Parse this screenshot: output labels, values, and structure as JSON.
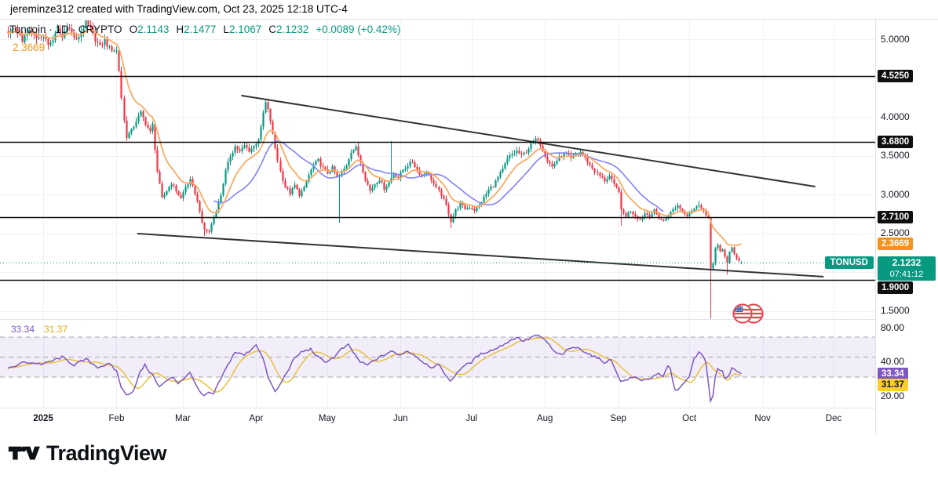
{
  "topbar": {
    "text": "jereminze312 created with TradingView.com, Oct 23, 2025 12:18 UTC-4"
  },
  "legend": {
    "symbol_line": "Toncoin · 1D · CRYPTO",
    "ohlc": [
      {
        "label": "O",
        "value": "2.1143"
      },
      {
        "label": "H",
        "value": "2.1477"
      },
      {
        "label": "L",
        "value": "2.1067"
      },
      {
        "label": "C",
        "value": "2.1232"
      }
    ],
    "change": "+0.0089 (+0.42%)",
    "ma_value": "2.3669"
  },
  "price_axis": {
    "ticks": [
      {
        "text": "5.0000",
        "price": 5.0
      },
      {
        "text": "4.0000",
        "price": 4.0
      },
      {
        "text": "3.5000",
        "price": 3.5
      },
      {
        "text": "3.0000",
        "price": 3.0
      },
      {
        "text": "2.5000",
        "price": 2.5
      },
      {
        "text": "1.5000",
        "price": 1.5
      }
    ],
    "level_labels": [
      {
        "text": "4.5250",
        "price": 4.525
      },
      {
        "text": "3.6800",
        "price": 3.68
      },
      {
        "text": "2.7100",
        "price": 2.71
      },
      {
        "text": "1.9000",
        "price": 1.9
      }
    ],
    "ma_label": {
      "text": "2.3669",
      "price": 2.3669
    },
    "last": {
      "symbol": "TONUSD",
      "price_text": "2.1232",
      "countdown": "07:41:12",
      "price": 2.1232
    }
  },
  "rsi_axis": {
    "ticks": [
      {
        "text": "80.00",
        "v": 80
      },
      {
        "text": "40.00",
        "v": 40
      },
      {
        "text": "20.00",
        "v": 20
      }
    ],
    "rsi_label": {
      "text": "33.34",
      "v": 33.34
    },
    "ma_label": {
      "text": "31.37",
      "v": 31.37
    }
  },
  "rsi_readout": {
    "rsi": "33.34",
    "ma": "31.37"
  },
  "footer": {
    "brand": "TradingView"
  },
  "colors": {
    "up": "#089981",
    "down": "#F23645",
    "ma_fast": "#F8AB63",
    "ma_slow": "#8183F6",
    "rsi": "#7E57C2",
    "rsi_ma": "#E9C13D",
    "accent_teal": "#089981",
    "label_black_bg": "#0F0F0F",
    "label_orange_bg": "#F7931A",
    "grid": "#EFF1F4",
    "band_fill": "rgba(126,87,194,0.10)",
    "dashed": "#9598A1",
    "trendline": "#1F2328",
    "level_line": "#0B0B0B",
    "separator": "#E0E3EB",
    "text": "#131722"
  },
  "chart_data": {
    "type": "candlestick",
    "symbol": "TONUSD",
    "title": "Toncoin · 1D · CRYPTO",
    "interval": "1D",
    "price_axis_range": [
      1.36,
      5.25
    ],
    "last_candle": {
      "o": 2.1143,
      "h": 2.1477,
      "l": 2.1067,
      "c": 2.1232,
      "change": "+0.0089 (+0.42%)"
    },
    "current_price": 2.1232,
    "horizontal_levels": [
      4.525,
      3.68,
      2.71,
      1.9
    ],
    "ma_fast_last_value": 2.3669,
    "month_ticks": [
      {
        "label": "2025",
        "day": 0,
        "bold": true
      },
      {
        "label": "Feb",
        "day": 31
      },
      {
        "label": "Mar",
        "day": 59
      },
      {
        "label": "Apr",
        "day": 90
      },
      {
        "label": "May",
        "day": 120
      },
      {
        "label": "Jun",
        "day": 151
      },
      {
        "label": "Jul",
        "day": 181
      },
      {
        "label": "Aug",
        "day": 212
      },
      {
        "label": "Sep",
        "day": 243
      },
      {
        "label": "Oct",
        "day": 273
      },
      {
        "label": "Nov",
        "day": 304
      },
      {
        "label": "Dec",
        "day": 334
      }
    ],
    "price_path": [
      [
        -15,
        5.08
      ],
      [
        -12,
        5.15
      ],
      [
        -9,
        4.98
      ],
      [
        -6,
        5.1
      ],
      [
        -3,
        5.0
      ],
      [
        0,
        5.05
      ],
      [
        2,
        4.92
      ],
      [
        4,
        5.0
      ],
      [
        6,
        5.12
      ],
      [
        8,
        5.02
      ],
      [
        10,
        5.18
      ],
      [
        12,
        5.08
      ],
      [
        14,
        4.98
      ],
      [
        16,
        5.1
      ],
      [
        18,
        5.22
      ],
      [
        20,
        5.12
      ],
      [
        22,
        5.0
      ],
      [
        24,
        4.9
      ],
      [
        26,
        4.98
      ],
      [
        28,
        4.88
      ],
      [
        31,
        4.85
      ],
      [
        32,
        4.6
      ],
      [
        33,
        4.25
      ],
      [
        34,
        3.95
      ],
      [
        35,
        3.75
      ],
      [
        37,
        3.82
      ],
      [
        39,
        3.95
      ],
      [
        41,
        4.05
      ],
      [
        43,
        3.92
      ],
      [
        45,
        3.8
      ],
      [
        46,
        3.9
      ],
      [
        48,
        3.3
      ],
      [
        50,
        2.95
      ],
      [
        52,
        3.05
      ],
      [
        54,
        3.15
      ],
      [
        56,
        3.05
      ],
      [
        58,
        2.95
      ],
      [
        60,
        3.1
      ],
      [
        62,
        3.18
      ],
      [
        64,
        3.02
      ],
      [
        66,
        2.8
      ],
      [
        67,
        2.62
      ],
      [
        68,
        2.55
      ],
      [
        70,
        2.52
      ],
      [
        71,
        2.62
      ],
      [
        73,
        2.8
      ],
      [
        75,
        3.0
      ],
      [
        77,
        3.3
      ],
      [
        79,
        3.5
      ],
      [
        81,
        3.62
      ],
      [
        83,
        3.55
      ],
      [
        85,
        3.63
      ],
      [
        87,
        3.57
      ],
      [
        89,
        3.62
      ],
      [
        91,
        3.72
      ],
      [
        92,
        3.85
      ],
      [
        93,
        4.05
      ],
      [
        94,
        4.18
      ],
      [
        95,
        4.08
      ],
      [
        96,
        3.95
      ],
      [
        98,
        3.6
      ],
      [
        100,
        3.3
      ],
      [
        102,
        3.1
      ],
      [
        104,
        3.02
      ],
      [
        106,
        3.12
      ],
      [
        108,
        3.0
      ],
      [
        110,
        3.08
      ],
      [
        112,
        3.25
      ],
      [
        114,
        3.38
      ],
      [
        116,
        3.44
      ],
      [
        118,
        3.34
      ],
      [
        120,
        3.28
      ],
      [
        122,
        3.34
      ],
      [
        124,
        3.22
      ],
      [
        126,
        3.28
      ],
      [
        128,
        3.38
      ],
      [
        130,
        3.56
      ],
      [
        132,
        3.6
      ],
      [
        134,
        3.42
      ],
      [
        136,
        3.2
      ],
      [
        138,
        3.05
      ],
      [
        140,
        3.14
      ],
      [
        142,
        3.2
      ],
      [
        144,
        3.08
      ],
      [
        146,
        3.16
      ],
      [
        148,
        3.27
      ],
      [
        150,
        3.22
      ],
      [
        152,
        3.32
      ],
      [
        154,
        3.38
      ],
      [
        156,
        3.42
      ],
      [
        158,
        3.32
      ],
      [
        160,
        3.24
      ],
      [
        162,
        3.3
      ],
      [
        164,
        3.2
      ],
      [
        166,
        3.08
      ],
      [
        168,
        3.0
      ],
      [
        170,
        2.86
      ],
      [
        172,
        2.66
      ],
      [
        174,
        2.8
      ],
      [
        176,
        2.88
      ],
      [
        178,
        2.82
      ],
      [
        180,
        2.84
      ],
      [
        182,
        2.8
      ],
      [
        184,
        2.86
      ],
      [
        186,
        2.96
      ],
      [
        188,
        3.06
      ],
      [
        190,
        3.12
      ],
      [
        192,
        3.22
      ],
      [
        194,
        3.32
      ],
      [
        196,
        3.46
      ],
      [
        198,
        3.52
      ],
      [
        200,
        3.56
      ],
      [
        202,
        3.5
      ],
      [
        204,
        3.56
      ],
      [
        206,
        3.64
      ],
      [
        208,
        3.7
      ],
      [
        209,
        3.72
      ],
      [
        211,
        3.58
      ],
      [
        213,
        3.44
      ],
      [
        215,
        3.36
      ],
      [
        217,
        3.44
      ],
      [
        219,
        3.5
      ],
      [
        221,
        3.52
      ],
      [
        223,
        3.46
      ],
      [
        225,
        3.52
      ],
      [
        227,
        3.55
      ],
      [
        229,
        3.47
      ],
      [
        231,
        3.38
      ],
      [
        233,
        3.3
      ],
      [
        235,
        3.24
      ],
      [
        237,
        3.18
      ],
      [
        239,
        3.24
      ],
      [
        241,
        3.12
      ],
      [
        243,
        3.05
      ],
      [
        244,
        2.79
      ],
      [
        246,
        2.73
      ],
      [
        248,
        2.79
      ],
      [
        250,
        2.73
      ],
      [
        252,
        2.68
      ],
      [
        254,
        2.76
      ],
      [
        256,
        2.73
      ],
      [
        258,
        2.79
      ],
      [
        260,
        2.7
      ],
      [
        262,
        2.66
      ],
      [
        264,
        2.73
      ],
      [
        266,
        2.81
      ],
      [
        268,
        2.86
      ],
      [
        270,
        2.79
      ],
      [
        272,
        2.74
      ],
      [
        274,
        2.8
      ],
      [
        276,
        2.84
      ],
      [
        277,
        2.88
      ],
      [
        278,
        2.84
      ],
      [
        279,
        2.79
      ],
      [
        280,
        2.73
      ],
      [
        281,
        2.69
      ],
      [
        282,
        2.05
      ],
      [
        283,
        2.13
      ],
      [
        284,
        2.31
      ],
      [
        285,
        2.34
      ],
      [
        286,
        2.26
      ],
      [
        287,
        2.29
      ],
      [
        288,
        2.21
      ],
      [
        289,
        2.13
      ],
      [
        290,
        2.26
      ],
      [
        291,
        2.31
      ],
      [
        292,
        2.23
      ],
      [
        293,
        2.19
      ],
      [
        294,
        2.16
      ],
      [
        295,
        2.1232
      ]
    ],
    "wick_overrides": {
      "20": {
        "h": 5.32
      },
      "68": {
        "l": 2.47
      },
      "94": {
        "h": 4.22
      },
      "125": {
        "l": 2.64
      },
      "147": {
        "h": 3.69
      },
      "172": {
        "l": 2.57
      },
      "209": {
        "h": 3.745
      },
      "244": {
        "l": 2.6
      },
      "277": {
        "h": 2.92
      },
      "282": {
        "h": 2.7,
        "l": 1.36
      },
      "289": {
        "l": 1.97
      },
      "295": {
        "o": 2.1143,
        "h": 2.1477,
        "l": 2.1067,
        "c": 2.1232
      }
    },
    "trendlines": [
      {
        "name": "upper-descending-trendline",
        "d1": 84,
        "p1": 4.274,
        "d2": 326,
        "p2": 3.105
      },
      {
        "name": "lower-descending-trendline",
        "d1": 40,
        "p1": 2.499,
        "d2": 329.5,
        "p2": 1.945
      }
    ],
    "rsi": {
      "period_bands": [
        70,
        50,
        30
      ],
      "last_value": 33.34,
      "ma_last_value": 31.37,
      "path": [
        [
          -15,
          38
        ],
        [
          -8,
          45
        ],
        [
          0,
          43
        ],
        [
          8,
          50
        ],
        [
          13,
          42
        ],
        [
          18,
          48
        ],
        [
          23,
          40
        ],
        [
          28,
          43
        ],
        [
          31,
          36
        ],
        [
          33,
          20
        ],
        [
          35,
          12
        ],
        [
          38,
          16
        ],
        [
          41,
          35
        ],
        [
          43,
          42
        ],
        [
          45,
          35
        ],
        [
          47,
          30
        ],
        [
          49,
          20
        ],
        [
          52,
          26
        ],
        [
          55,
          30
        ],
        [
          57,
          24
        ],
        [
          60,
          30
        ],
        [
          62,
          34
        ],
        [
          64,
          26
        ],
        [
          66,
          15
        ],
        [
          68,
          11
        ],
        [
          70,
          14
        ],
        [
          72,
          13
        ],
        [
          75,
          28
        ],
        [
          78,
          42
        ],
        [
          81,
          55
        ],
        [
          85,
          52
        ],
        [
          88,
          58
        ],
        [
          90,
          63
        ],
        [
          93,
          48
        ],
        [
          95,
          30
        ],
        [
          98,
          15
        ],
        [
          100,
          22
        ],
        [
          103,
          35
        ],
        [
          106,
          48
        ],
        [
          109,
          55
        ],
        [
          113,
          58
        ],
        [
          116,
          50
        ],
        [
          119,
          45
        ],
        [
          123,
          50
        ],
        [
          126,
          58
        ],
        [
          129,
          62
        ],
        [
          131,
          55
        ],
        [
          134,
          45
        ],
        [
          137,
          42
        ],
        [
          140,
          47
        ],
        [
          144,
          52
        ],
        [
          147,
          56
        ],
        [
          150,
          52
        ],
        [
          154,
          56
        ],
        [
          157,
          52
        ],
        [
          160,
          46
        ],
        [
          164,
          40
        ],
        [
          167,
          42
        ],
        [
          170,
          33
        ],
        [
          172,
          25
        ],
        [
          175,
          35
        ],
        [
          177,
          40
        ],
        [
          181,
          45
        ],
        [
          184,
          52
        ],
        [
          187,
          55
        ],
        [
          191,
          58
        ],
        [
          194,
          62
        ],
        [
          197,
          66
        ],
        [
          200,
          70
        ],
        [
          203,
          66
        ],
        [
          205,
          68
        ],
        [
          208,
          72
        ],
        [
          211,
          69
        ],
        [
          213,
          65
        ],
        [
          216,
          55
        ],
        [
          219,
          52
        ],
        [
          221,
          56
        ],
        [
          224,
          60
        ],
        [
          227,
          58
        ],
        [
          230,
          54
        ],
        [
          234,
          49
        ],
        [
          237,
          45
        ],
        [
          240,
          47
        ],
        [
          243,
          32
        ],
        [
          244,
          25
        ],
        [
          247,
          28
        ],
        [
          250,
          30
        ],
        [
          253,
          27
        ],
        [
          257,
          29
        ],
        [
          260,
          33
        ],
        [
          262,
          30
        ],
        [
          264,
          42
        ],
        [
          265,
          38
        ],
        [
          267,
          16
        ],
        [
          269,
          20
        ],
        [
          271,
          24
        ],
        [
          273,
          30
        ],
        [
          275,
          48
        ],
        [
          277,
          55
        ],
        [
          279,
          50
        ],
        [
          280,
          45
        ],
        [
          282,
          7
        ],
        [
          283,
          10
        ],
        [
          284,
          30
        ],
        [
          285,
          38
        ],
        [
          287,
          35
        ],
        [
          288,
          28
        ],
        [
          290,
          33
        ],
        [
          291,
          40
        ],
        [
          293,
          36
        ],
        [
          295,
          33.34
        ]
      ]
    }
  }
}
